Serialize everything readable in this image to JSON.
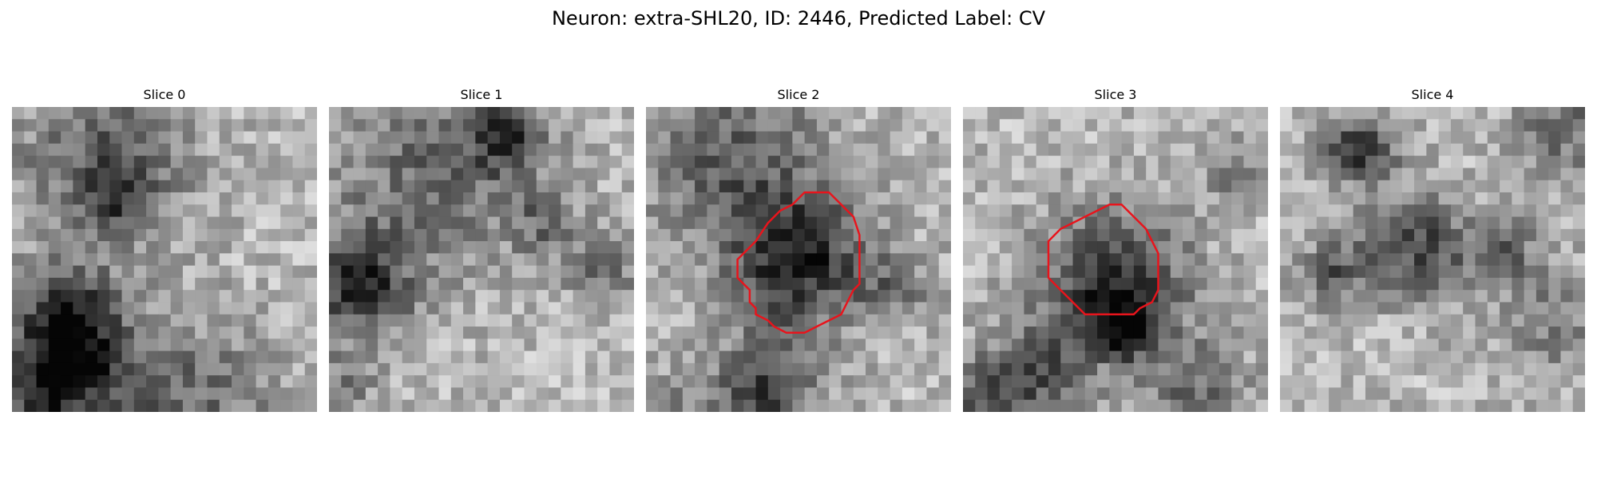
{
  "figure": {
    "title": "Neuron: extra-SHL20, ID: 2446, Predicted Label: CV",
    "contour_color": "#e8141c"
  },
  "panels": [
    {
      "label": "Slice 0",
      "has_contour": false
    },
    {
      "label": "Slice 1",
      "has_contour": false
    },
    {
      "label": "Slice 2",
      "has_contour": true
    },
    {
      "label": "Slice 3",
      "has_contour": true
    },
    {
      "label": "Slice 4",
      "has_contour": false
    }
  ]
}
